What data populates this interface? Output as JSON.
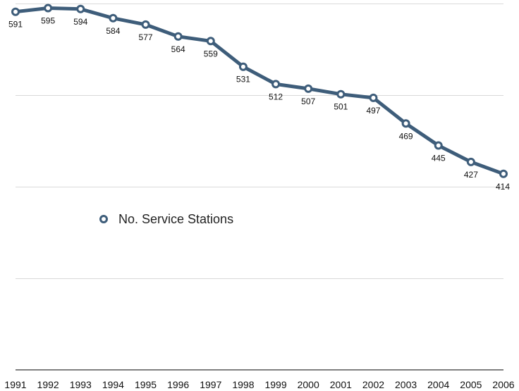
{
  "chart_data": {
    "type": "line",
    "categories": [
      "1991",
      "1992",
      "1993",
      "1994",
      "1995",
      "1996",
      "1997",
      "1998",
      "1999",
      "2000",
      "2001",
      "2002",
      "2003",
      "2004",
      "2005",
      "2006"
    ],
    "series": [
      {
        "name": "No. Service Stations",
        "values": [
          591,
          595,
          594,
          584,
          577,
          564,
          559,
          531,
          512,
          507,
          501,
          497,
          469,
          445,
          427,
          414
        ],
        "color": "#3e5d7a"
      }
    ],
    "data_labels": [
      "591",
      "595",
      "594",
      "584",
      "577",
      "564",
      "559",
      "531",
      "512",
      "507",
      "501",
      "497",
      "469",
      "445",
      "427",
      "414"
    ],
    "ylim": [
      200,
      600
    ],
    "grid": true,
    "legend": {
      "placement": "center-left"
    },
    "colors": {
      "series": "#3e5d7a",
      "grid": "#d9d9d9",
      "axis": "#555555"
    }
  }
}
